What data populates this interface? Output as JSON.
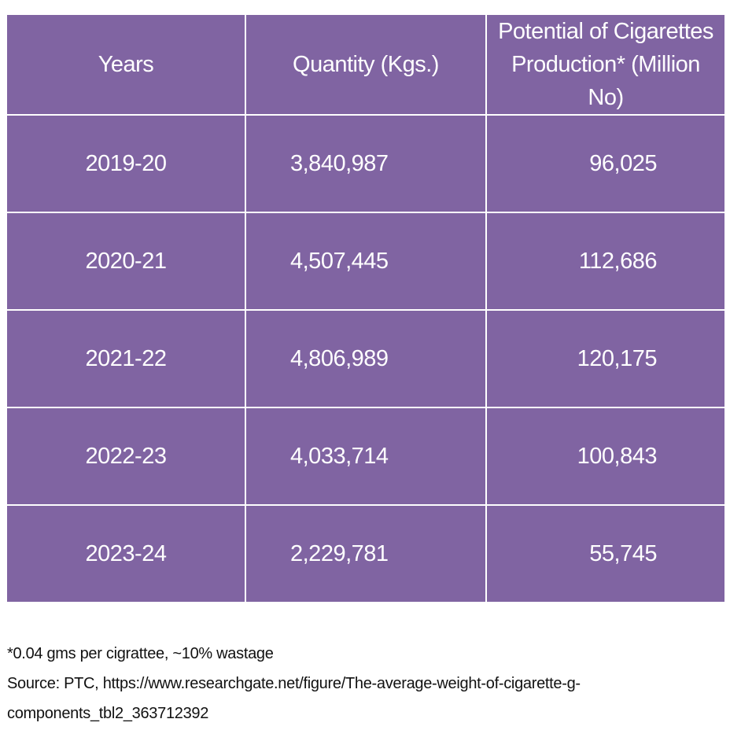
{
  "table": {
    "header": [
      "Years",
      "Quantity (Kgs.)",
      "Potential of Cigarettes Production* (Million No)"
    ],
    "rows": [
      [
        "2019-20",
        "3,840,987",
        "96,025"
      ],
      [
        "2020-21",
        "4,507,445",
        "112,686"
      ],
      [
        "2021-22",
        "4,806,989",
        "120,175"
      ],
      [
        "2022-23",
        "4,033,714",
        "100,843"
      ],
      [
        "2023-24",
        "2,229,781",
        "55,745"
      ]
    ]
  },
  "notes": [
    "*0.04 gms per cigrattee, ~10% wastage",
    "Source: PTC, https://www.researchgate.net/figure/The-average-weight-of-cigarette-g-",
    "components_tbl2_363712392"
  ]
}
